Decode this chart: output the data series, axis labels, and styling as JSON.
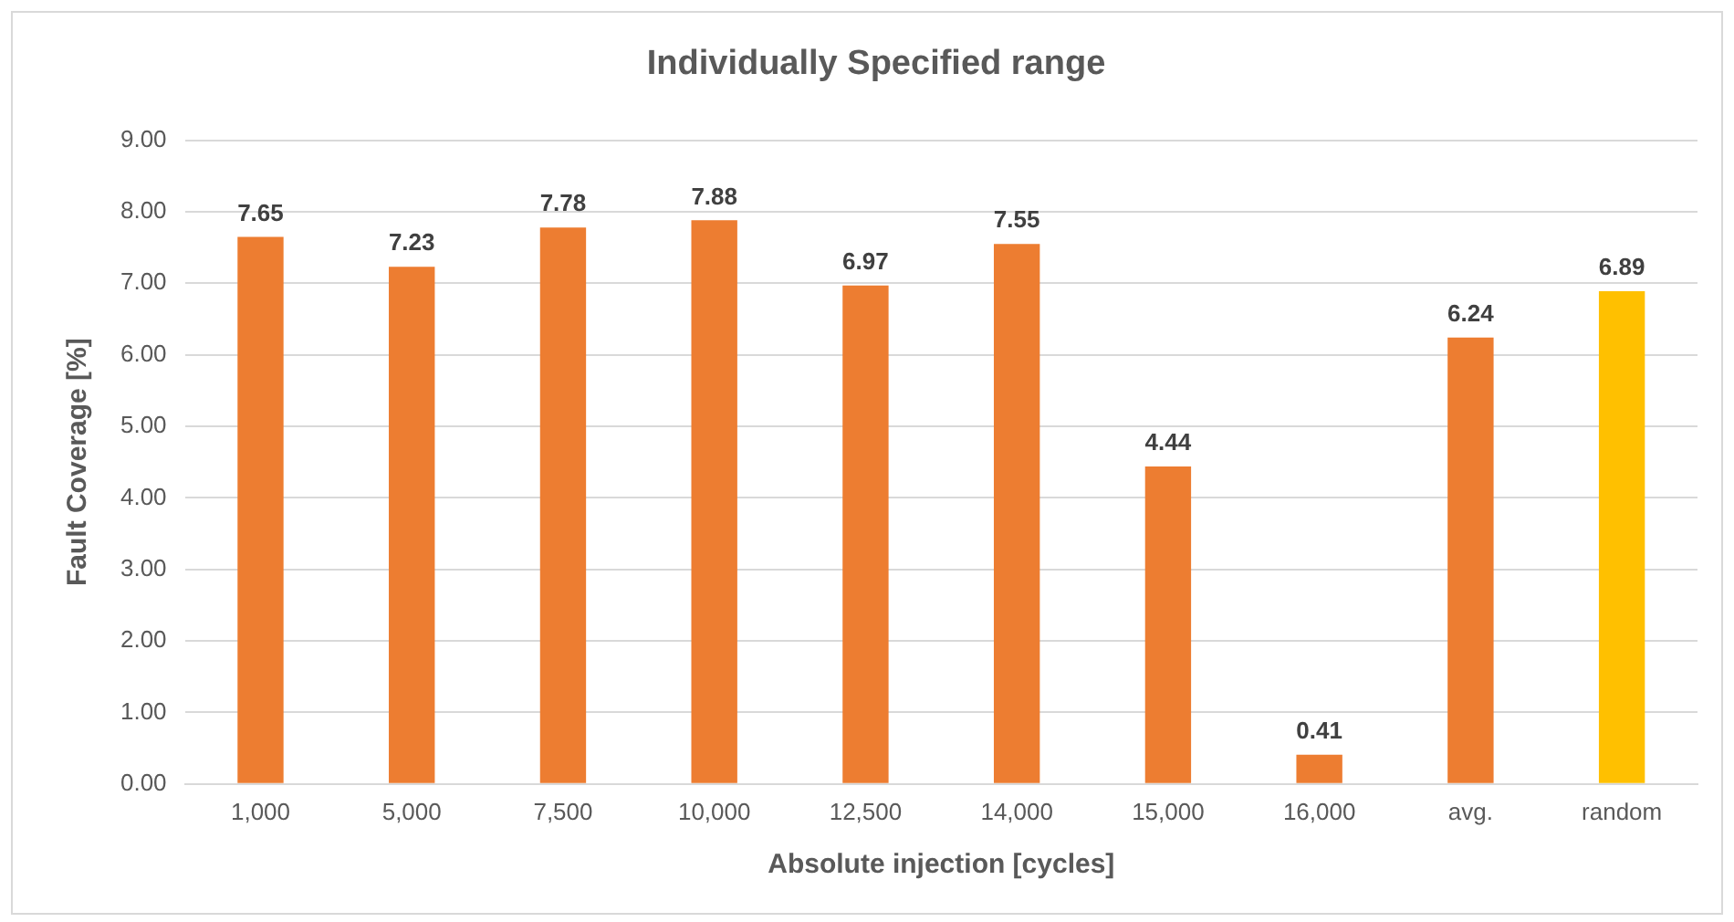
{
  "chart_data": {
    "type": "bar",
    "title": "Individually Specified range",
    "xlabel": "Absolute injection [cycles]",
    "ylabel": "Fault Coverage [%]",
    "categories": [
      "1,000",
      "5,000",
      "7,500",
      "10,000",
      "12,500",
      "14,000",
      "15,000",
      "16,000",
      "avg.",
      "random"
    ],
    "values": [
      7.65,
      7.23,
      7.78,
      7.88,
      6.97,
      7.55,
      4.44,
      0.41,
      6.24,
      6.89
    ],
    "colors": [
      "#ed7d31",
      "#ed7d31",
      "#ed7d31",
      "#ed7d31",
      "#ed7d31",
      "#ed7d31",
      "#ed7d31",
      "#ed7d31",
      "#ed7d31",
      "#ffc000"
    ],
    "ylim": [
      0,
      9
    ],
    "yticks": [
      {
        "value": 0,
        "label": "0.00"
      },
      {
        "value": 1,
        "label": "1.00"
      },
      {
        "value": 2,
        "label": "2.00"
      },
      {
        "value": 3,
        "label": "3.00"
      },
      {
        "value": 4,
        "label": "4.00"
      },
      {
        "value": 5,
        "label": "5.00"
      },
      {
        "value": 6,
        "label": "6.00"
      },
      {
        "value": 7,
        "label": "7.00"
      },
      {
        "value": 8,
        "label": "8.00"
      },
      {
        "value": 9,
        "label": "9.00"
      }
    ],
    "grid": "y",
    "data_labels": true
  }
}
